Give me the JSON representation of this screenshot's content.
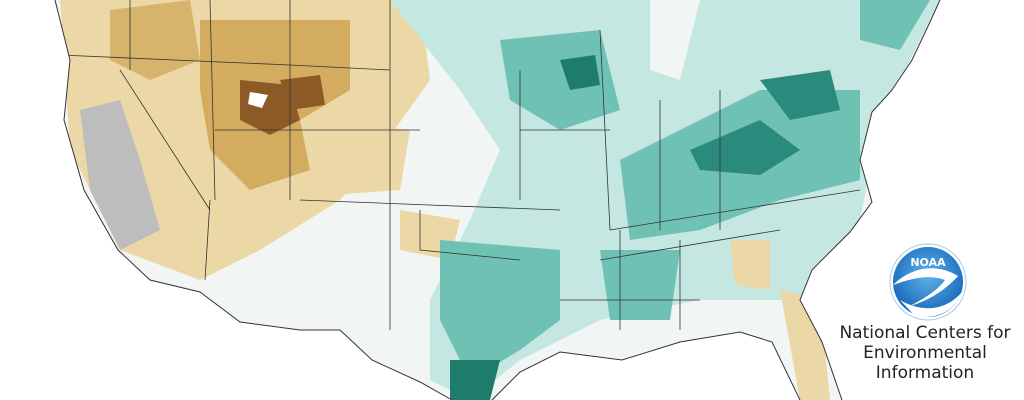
{
  "logo": {
    "acronym": "NOAA"
  },
  "organization": {
    "lines": [
      "National Centers for",
      "Environmental",
      "Information"
    ]
  }
}
